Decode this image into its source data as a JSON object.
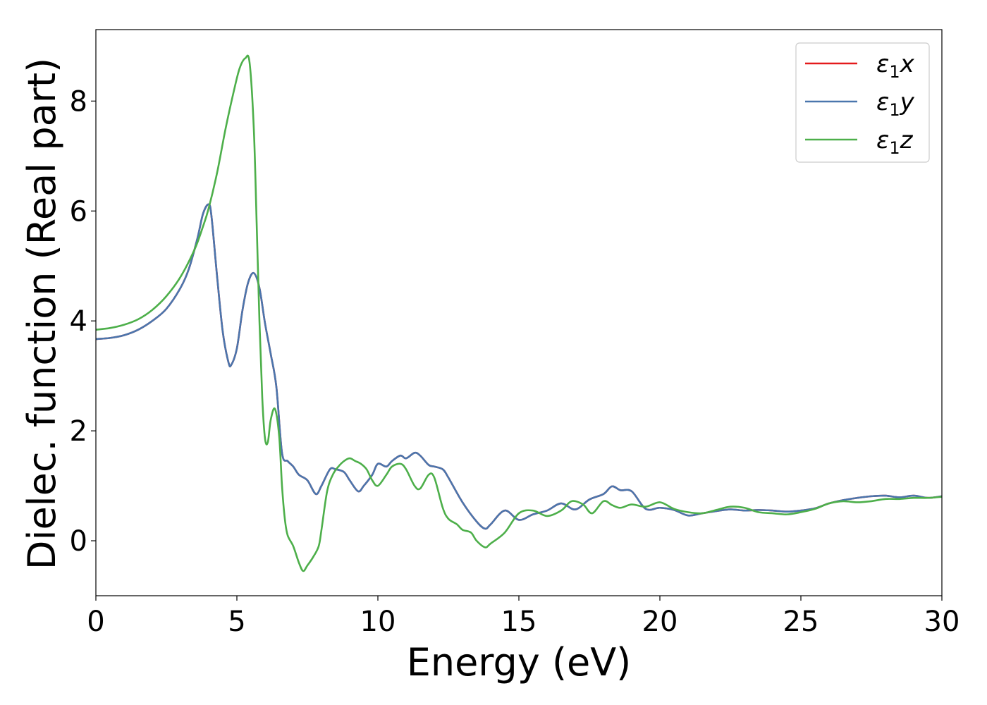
{
  "chart_data": {
    "type": "line",
    "title": "",
    "xlabel": "Energy (eV)",
    "ylabel": "Dielec. function (Real part)",
    "xlim": [
      0,
      30
    ],
    "ylim": [
      -1,
      9.3
    ],
    "xticks": [
      0,
      5,
      10,
      15,
      20,
      25,
      30
    ],
    "yticks": [
      0,
      2,
      4,
      6,
      8
    ],
    "grid": false,
    "legend_position": "top-right",
    "series": [
      {
        "name": "ε1x",
        "legend_base": "ε",
        "legend_sub": "1",
        "legend_var": "x",
        "color": "#e41a1c",
        "x": [
          0,
          0.5,
          1,
          1.5,
          2,
          2.5,
          3,
          3.3,
          3.6,
          3.8,
          4.0,
          4.1,
          4.3,
          4.5,
          4.7,
          4.8,
          5.0,
          5.2,
          5.4,
          5.6,
          5.8,
          6.0,
          6.2,
          6.4,
          6.6,
          6.8,
          7.0,
          7.2,
          7.5,
          7.8,
          8.0,
          8.3,
          8.5,
          8.8,
          9.0,
          9.3,
          9.5,
          9.8,
          10.0,
          10.3,
          10.5,
          10.8,
          11.0,
          11.3,
          11.5,
          11.8,
          12.0,
          12.3,
          12.5,
          13.0,
          13.5,
          13.8,
          14.0,
          14.5,
          15.0,
          15.5,
          16.0,
          16.5,
          17.0,
          17.5,
          18.0,
          18.3,
          18.6,
          19.0,
          19.5,
          20.0,
          20.5,
          21.0,
          21.5,
          22.0,
          22.5,
          23.0,
          23.5,
          24.0,
          24.5,
          25.0,
          25.5,
          26.0,
          26.5,
          27.0,
          27.5,
          28.0,
          28.5,
          29.0,
          29.5,
          30.0
        ],
        "y": [
          3.67,
          3.69,
          3.74,
          3.84,
          4.0,
          4.22,
          4.6,
          4.95,
          5.5,
          5.95,
          6.12,
          5.9,
          4.8,
          3.8,
          3.25,
          3.2,
          3.5,
          4.2,
          4.7,
          4.87,
          4.6,
          3.95,
          3.4,
          2.8,
          1.6,
          1.45,
          1.35,
          1.2,
          1.1,
          0.85,
          1.0,
          1.3,
          1.3,
          1.25,
          1.1,
          0.9,
          1.0,
          1.2,
          1.4,
          1.35,
          1.45,
          1.55,
          1.5,
          1.6,
          1.55,
          1.38,
          1.35,
          1.3,
          1.15,
          0.7,
          0.35,
          0.22,
          0.3,
          0.55,
          0.38,
          0.48,
          0.55,
          0.68,
          0.57,
          0.75,
          0.85,
          0.99,
          0.92,
          0.9,
          0.58,
          0.6,
          0.56,
          0.46,
          0.5,
          0.54,
          0.57,
          0.55,
          0.56,
          0.55,
          0.53,
          0.55,
          0.59,
          0.68,
          0.74,
          0.78,
          0.81,
          0.82,
          0.79,
          0.82,
          0.78,
          0.81
        ]
      },
      {
        "name": "ε1y",
        "legend_base": "ε",
        "legend_sub": "1",
        "legend_var": "y",
        "color": "#4a76ad",
        "x": [
          0,
          0.5,
          1,
          1.5,
          2,
          2.5,
          3,
          3.3,
          3.6,
          3.8,
          4.0,
          4.1,
          4.3,
          4.5,
          4.7,
          4.8,
          5.0,
          5.2,
          5.4,
          5.6,
          5.8,
          6.0,
          6.2,
          6.4,
          6.6,
          6.8,
          7.0,
          7.2,
          7.5,
          7.8,
          8.0,
          8.3,
          8.5,
          8.8,
          9.0,
          9.3,
          9.5,
          9.8,
          10.0,
          10.3,
          10.5,
          10.8,
          11.0,
          11.3,
          11.5,
          11.8,
          12.0,
          12.3,
          12.5,
          13.0,
          13.5,
          13.8,
          14.0,
          14.5,
          15.0,
          15.5,
          16.0,
          16.5,
          17.0,
          17.5,
          18.0,
          18.3,
          18.6,
          19.0,
          19.5,
          20.0,
          20.5,
          21.0,
          21.5,
          22.0,
          22.5,
          23.0,
          23.5,
          24.0,
          24.5,
          25.0,
          25.5,
          26.0,
          26.5,
          27.0,
          27.5,
          28.0,
          28.5,
          29.0,
          29.5,
          30.0
        ],
        "y": [
          3.67,
          3.69,
          3.74,
          3.84,
          4.0,
          4.22,
          4.6,
          4.95,
          5.5,
          5.95,
          6.12,
          5.9,
          4.8,
          3.8,
          3.25,
          3.2,
          3.5,
          4.2,
          4.7,
          4.87,
          4.6,
          3.95,
          3.4,
          2.8,
          1.6,
          1.45,
          1.35,
          1.2,
          1.1,
          0.85,
          1.0,
          1.3,
          1.3,
          1.25,
          1.1,
          0.9,
          1.0,
          1.2,
          1.4,
          1.35,
          1.45,
          1.55,
          1.5,
          1.6,
          1.55,
          1.38,
          1.35,
          1.3,
          1.15,
          0.7,
          0.35,
          0.22,
          0.3,
          0.55,
          0.38,
          0.48,
          0.55,
          0.68,
          0.57,
          0.75,
          0.85,
          0.99,
          0.92,
          0.9,
          0.58,
          0.6,
          0.56,
          0.46,
          0.5,
          0.54,
          0.57,
          0.55,
          0.56,
          0.55,
          0.53,
          0.55,
          0.59,
          0.68,
          0.74,
          0.78,
          0.81,
          0.82,
          0.79,
          0.82,
          0.78,
          0.81
        ]
      },
      {
        "name": "ε1z",
        "legend_base": "ε",
        "legend_sub": "1",
        "legend_var": "z",
        "color": "#4daf4a",
        "x": [
          0,
          0.5,
          1,
          1.5,
          2,
          2.5,
          3,
          3.5,
          3.8,
          4.0,
          4.3,
          4.6,
          4.9,
          5.1,
          5.3,
          5.45,
          5.6,
          5.7,
          5.8,
          5.9,
          6.0,
          6.1,
          6.2,
          6.35,
          6.5,
          6.6,
          6.7,
          6.8,
          7.0,
          7.2,
          7.35,
          7.5,
          7.7,
          7.9,
          8.0,
          8.2,
          8.4,
          8.6,
          8.8,
          9.0,
          9.2,
          9.4,
          9.6,
          9.8,
          10.0,
          10.3,
          10.5,
          10.8,
          11.0,
          11.3,
          11.5,
          11.8,
          12.0,
          12.3,
          12.5,
          12.8,
          13.0,
          13.3,
          13.5,
          13.8,
          14.0,
          14.5,
          15.0,
          15.5,
          16.0,
          16.5,
          16.8,
          17.0,
          17.3,
          17.6,
          18.0,
          18.3,
          18.6,
          19.0,
          19.5,
          20.0,
          20.5,
          21.0,
          21.5,
          22.0,
          22.5,
          23.0,
          23.5,
          24.0,
          24.5,
          25.0,
          25.5,
          26.0,
          26.5,
          27.0,
          27.5,
          28.0,
          28.5,
          29.0,
          29.5,
          30.0
        ],
        "y": [
          3.84,
          3.87,
          3.93,
          4.03,
          4.2,
          4.45,
          4.8,
          5.3,
          5.72,
          6.05,
          6.7,
          7.5,
          8.2,
          8.6,
          8.78,
          8.7,
          7.5,
          5.8,
          4.0,
          2.6,
          1.85,
          1.8,
          2.2,
          2.4,
          1.9,
          1.0,
          0.4,
          0.1,
          -0.1,
          -0.4,
          -0.55,
          -0.45,
          -0.3,
          -0.1,
          0.2,
          0.9,
          1.2,
          1.35,
          1.45,
          1.5,
          1.45,
          1.4,
          1.3,
          1.1,
          1.0,
          1.2,
          1.35,
          1.4,
          1.3,
          1.0,
          0.95,
          1.2,
          1.15,
          0.6,
          0.4,
          0.3,
          0.2,
          0.15,
          0.0,
          -0.12,
          -0.05,
          0.15,
          0.5,
          0.55,
          0.45,
          0.55,
          0.7,
          0.72,
          0.65,
          0.5,
          0.72,
          0.65,
          0.6,
          0.66,
          0.62,
          0.7,
          0.58,
          0.52,
          0.5,
          0.56,
          0.62,
          0.6,
          0.52,
          0.5,
          0.48,
          0.52,
          0.58,
          0.68,
          0.72,
          0.7,
          0.72,
          0.76,
          0.76,
          0.78,
          0.78,
          0.8
        ]
      }
    ]
  }
}
